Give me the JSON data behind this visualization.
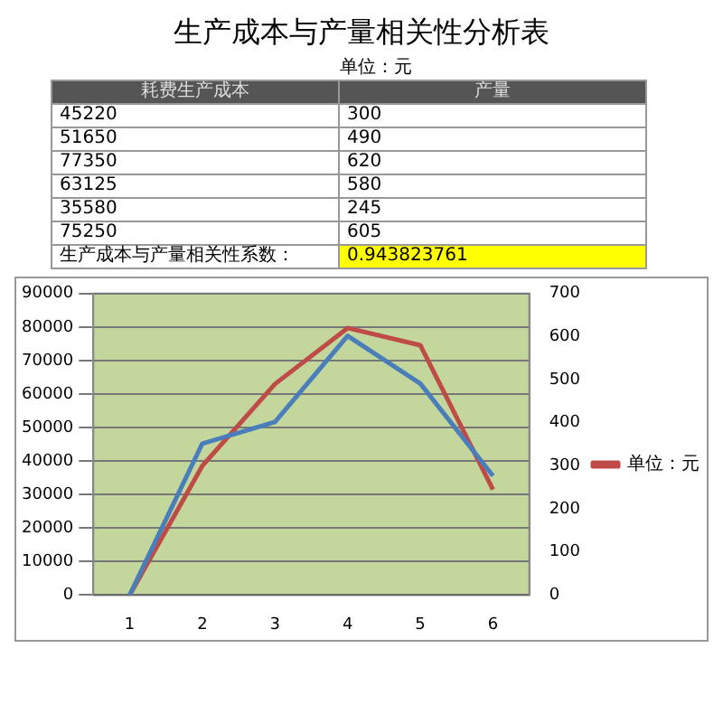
{
  "chart_data": {
    "type": "line",
    "title": "生产成本与产量相关性分析表",
    "annotations": [
      "单位：元",
      "耗费生产成本",
      "产量",
      "45220",
      "300",
      "51650",
      "490",
      "77350",
      "620",
      "63125",
      "580",
      "35580",
      "245",
      "75250",
      "605",
      "生产成本与产量相关性系数：",
      "0.943823761"
    ],
    "categories": [
      "1",
      "2",
      "3",
      "4",
      "5",
      "6"
    ],
    "series": [
      {
        "color": "#4a7ebb",
        "values": [
          0,
          45220,
          51650,
          77350,
          63125,
          35580
        ]
      },
      {
        "name": "单位：元",
        "color": "#be4b48",
        "axis": "y2",
        "values": [
          0,
          300,
          490,
          620,
          580,
          245
        ]
      }
    ],
    "ylim": [
      0,
      90000
    ],
    "yticks": [
      0,
      10000,
      20000,
      30000,
      40000,
      50000,
      60000,
      70000,
      80000,
      90000
    ],
    "y2lim": [
      0,
      700
    ],
    "y2ticks": [
      0,
      100,
      200,
      300,
      400,
      500,
      600,
      700
    ],
    "grid": "y",
    "legend": "right",
    "marker": "none",
    "line_style": "solid"
  }
}
